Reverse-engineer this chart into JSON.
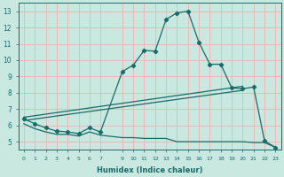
{
  "xlabel": "Humidex (Indice chaleur)",
  "bg_color": "#c8e8e0",
  "grid_color": "#e8b8b8",
  "line_color": "#1a6b6b",
  "xlim": [
    -0.5,
    23.5
  ],
  "ylim": [
    4.5,
    13.5
  ],
  "xticks": [
    0,
    1,
    2,
    3,
    4,
    5,
    6,
    7,
    9,
    10,
    11,
    12,
    13,
    14,
    15,
    16,
    17,
    18,
    19,
    20,
    21,
    22,
    23
  ],
  "yticks": [
    5,
    6,
    7,
    8,
    9,
    10,
    11,
    12,
    13
  ],
  "curve_x": [
    0,
    1,
    2,
    3,
    4,
    5,
    6,
    7,
    9,
    10,
    11,
    12,
    13,
    14,
    15,
    16,
    17,
    18,
    19,
    20,
    21,
    22,
    23
  ],
  "curve_y": [
    6.4,
    6.1,
    5.85,
    5.65,
    5.6,
    5.5,
    5.85,
    5.6,
    9.3,
    9.7,
    10.6,
    10.55,
    12.5,
    12.9,
    13.0,
    11.1,
    9.75,
    9.75,
    8.3,
    8.25,
    8.35,
    5.05,
    4.65
  ],
  "line1_x": [
    0,
    20
  ],
  "line1_y": [
    6.5,
    8.4
  ],
  "line2_x": [
    0,
    20
  ],
  "line2_y": [
    6.3,
    8.15
  ],
  "flat_x": [
    0,
    1,
    2,
    3,
    4,
    5,
    6,
    7,
    9,
    10,
    11,
    12,
    13,
    14,
    15,
    16,
    17,
    18,
    19,
    20,
    21,
    22,
    23
  ],
  "flat_y": [
    6.1,
    5.8,
    5.6,
    5.45,
    5.45,
    5.35,
    5.6,
    5.4,
    5.25,
    5.25,
    5.2,
    5.2,
    5.2,
    5.0,
    5.0,
    5.0,
    5.0,
    5.0,
    5.0,
    5.0,
    4.95,
    4.95,
    4.65
  ]
}
